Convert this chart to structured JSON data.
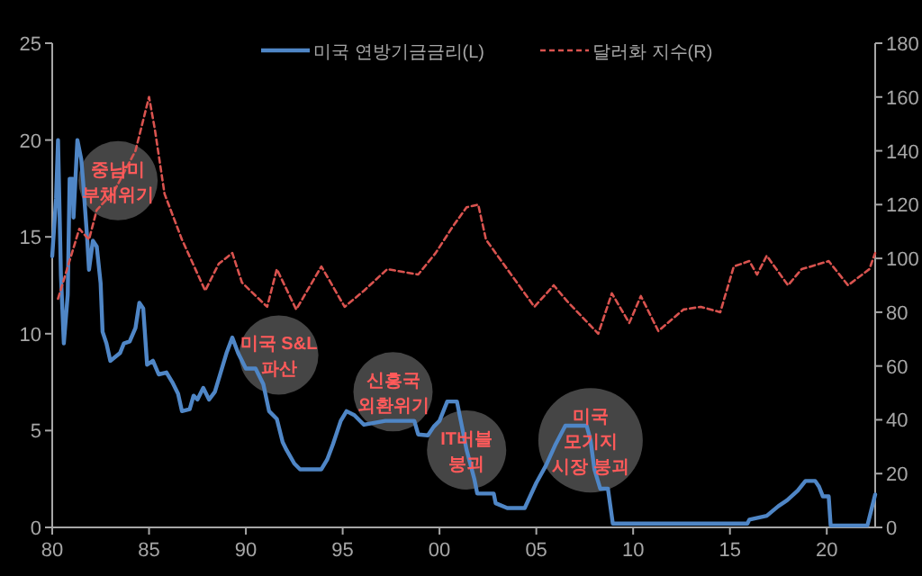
{
  "chart_data": {
    "type": "line",
    "legend": "top",
    "xlim": [
      1980,
      2022.5
    ],
    "xticks": [
      {
        "value": 1980,
        "label": "80"
      },
      {
        "value": 1985,
        "label": "85"
      },
      {
        "value": 1990,
        "label": "90"
      },
      {
        "value": 1995,
        "label": "95"
      },
      {
        "value": 2000,
        "label": "00"
      },
      {
        "value": 2005,
        "label": "05"
      },
      {
        "value": 2010,
        "label": "10"
      },
      {
        "value": 2015,
        "label": "15"
      },
      {
        "value": 2020,
        "label": "20"
      }
    ],
    "ylim": [
      0,
      25
    ],
    "yticks": [
      0,
      5,
      10,
      15,
      20,
      25
    ],
    "y2lim": [
      0,
      180
    ],
    "y2ticks": [
      0,
      20,
      40,
      60,
      80,
      100,
      120,
      140,
      160,
      180
    ],
    "series": [
      {
        "name": "미국 연방기금금리(L)",
        "color": "#4f86c6",
        "line_style": "solid",
        "x": [
          1980.0,
          1980.2,
          1980.3,
          1980.45,
          1980.6,
          1980.8,
          1980.9,
          1981.05,
          1981.1,
          1981.3,
          1981.5,
          1981.6,
          1981.8,
          1981.9,
          1982.1,
          1982.3,
          1982.5,
          1982.6,
          1982.8,
          1983.0,
          1983.5,
          1983.7,
          1984.0,
          1984.3,
          1984.5,
          1984.7,
          1984.9,
          1985.2,
          1985.5,
          1985.9,
          1986.2,
          1986.5,
          1986.7,
          1987.1,
          1987.3,
          1987.5,
          1987.8,
          1988.1,
          1988.4,
          1988.7,
          1989.0,
          1989.3,
          1989.6,
          1990.0,
          1990.5,
          1990.9,
          1991.2,
          1991.6,
          1991.9,
          1992.1,
          1992.5,
          1992.8,
          1993.9,
          1994.2,
          1994.5,
          1994.9,
          1995.2,
          1995.6,
          1996.1,
          1997.2,
          1998.7,
          1998.9,
          1999.4,
          1999.7,
          2000.0,
          2000.4,
          2000.9,
          2001.1,
          2001.4,
          2001.8,
          2001.95,
          2002.8,
          2002.9,
          2003.5,
          2004.4,
          2005.0,
          2005.5,
          2006.0,
          2006.5,
          2007.6,
          2007.8,
          2008.0,
          2008.3,
          2008.7,
          2008.95,
          2015.9,
          2016.0,
          2016.9,
          2017.5,
          2017.95,
          2018.5,
          2018.9,
          2019.4,
          2019.6,
          2019.8,
          2020.1,
          2020.2,
          2022.1,
          2022.3,
          2022.5
        ],
        "values": [
          14,
          17,
          20,
          13,
          9.5,
          12,
          18,
          18,
          16,
          20,
          19,
          17.8,
          15,
          13.3,
          14.8,
          14.5,
          12.6,
          10.1,
          9.5,
          8.6,
          9.0,
          9.5,
          9.6,
          10.3,
          11.6,
          11.3,
          8.4,
          8.6,
          7.9,
          8.0,
          7.5,
          6.9,
          6.0,
          6.1,
          6.8,
          6.6,
          7.2,
          6.6,
          7.0,
          8.0,
          9.0,
          9.8,
          9.0,
          8.2,
          8.2,
          7.4,
          6.0,
          5.6,
          4.4,
          4.0,
          3.3,
          3.0,
          3.0,
          3.5,
          4.3,
          5.5,
          6.0,
          5.8,
          5.3,
          5.5,
          5.5,
          4.8,
          4.75,
          5.2,
          5.5,
          6.5,
          6.5,
          5.5,
          4.0,
          2.5,
          1.75,
          1.75,
          1.25,
          1.0,
          1.0,
          2.3,
          3.2,
          4.3,
          5.25,
          5.25,
          4.5,
          3.0,
          2.0,
          2.0,
          0.2,
          0.2,
          0.4,
          0.6,
          1.1,
          1.4,
          1.9,
          2.4,
          2.4,
          2.1,
          1.6,
          1.6,
          0.1,
          0.1,
          0.9,
          1.7
        ]
      },
      {
        "name": "달러화 지수(R)",
        "color": "#d9534f",
        "line_style": "dashed",
        "axis": "y2",
        "x": [
          1980.3,
          1981.4,
          1981.9,
          1982.3,
          1983.2,
          1984.3,
          1985.0,
          1985.3,
          1985.8,
          1986.7,
          1987.9,
          1988.6,
          1989.3,
          1989.8,
          1991.1,
          1991.6,
          1992.6,
          1993.9,
          1995.1,
          1996.1,
          1997.3,
          1998.9,
          1999.8,
          2000.7,
          2001.4,
          2002.0,
          2002.4,
          2003.5,
          2004.2,
          2004.9,
          2005.9,
          2006.6,
          2008.2,
          2008.9,
          2009.8,
          2010.4,
          2011.3,
          2012.6,
          2013.5,
          2014.5,
          2015.2,
          2016.0,
          2016.4,
          2016.9,
          2018.0,
          2018.7,
          2020.1,
          2021.1,
          2022.2,
          2022.5
        ],
        "values": [
          85,
          111,
          107,
          118,
          125,
          140,
          160,
          148,
          124,
          107,
          88,
          98,
          102,
          91,
          82,
          96,
          81,
          97,
          82,
          88,
          96,
          94,
          102,
          112,
          119,
          120,
          107,
          96,
          89,
          82,
          90,
          84,
          72,
          87,
          76,
          86,
          73,
          81,
          82,
          80,
          97,
          99,
          94,
          101,
          90,
          96,
          99,
          90,
          96,
          102
        ]
      }
    ],
    "annotations": [
      {
        "text": "중남미\n부채위기",
        "x": 1983.4,
        "y": 17.9
      },
      {
        "text": "미국 S&L\n파산",
        "x": 1991.7,
        "y": 8.9
      },
      {
        "text": "신흥국\n외환위기",
        "x": 1997.6,
        "y": 7.0
      },
      {
        "text": "IT버블\n붕괴",
        "x": 2001.4,
        "y": 4.0
      },
      {
        "text": "미국\n모기지\n시장 붕괴",
        "x": 2007.8,
        "y": 4.5
      }
    ]
  }
}
